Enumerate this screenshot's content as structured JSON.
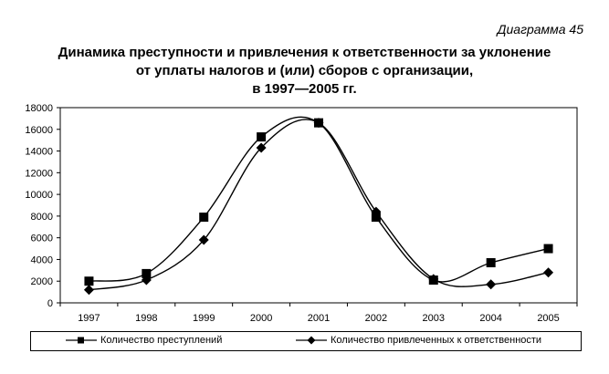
{
  "caption": "Диаграмма 45",
  "chart_data": {
    "type": "line",
    "title_lines": [
      "Динамика преступности и привлечения к ответственности за уклонение",
      "от уплаты налогов и (или) сборов с организации,",
      "в 1997—2005 гг."
    ],
    "categories": [
      "1997",
      "1998",
      "1999",
      "2000",
      "2001",
      "2002",
      "2003",
      "2004",
      "2005"
    ],
    "ylim": [
      0,
      18000
    ],
    "yticks": [
      "0",
      "2000",
      "4000",
      "6000",
      "8000",
      "10000",
      "12000",
      "14000",
      "16000",
      "18000"
    ],
    "grid": false,
    "legend_position": "bottom",
    "series": [
      {
        "name": "Количество преступлений",
        "marker": "square",
        "values": [
          2000,
          2700,
          7900,
          15300,
          16600,
          7900,
          2100,
          3700,
          5000
        ]
      },
      {
        "name": "Количество привлеченных к ответственности",
        "marker": "diamond",
        "values": [
          1200,
          2100,
          5800,
          14300,
          16600,
          8400,
          2200,
          1700,
          2800
        ]
      }
    ]
  }
}
